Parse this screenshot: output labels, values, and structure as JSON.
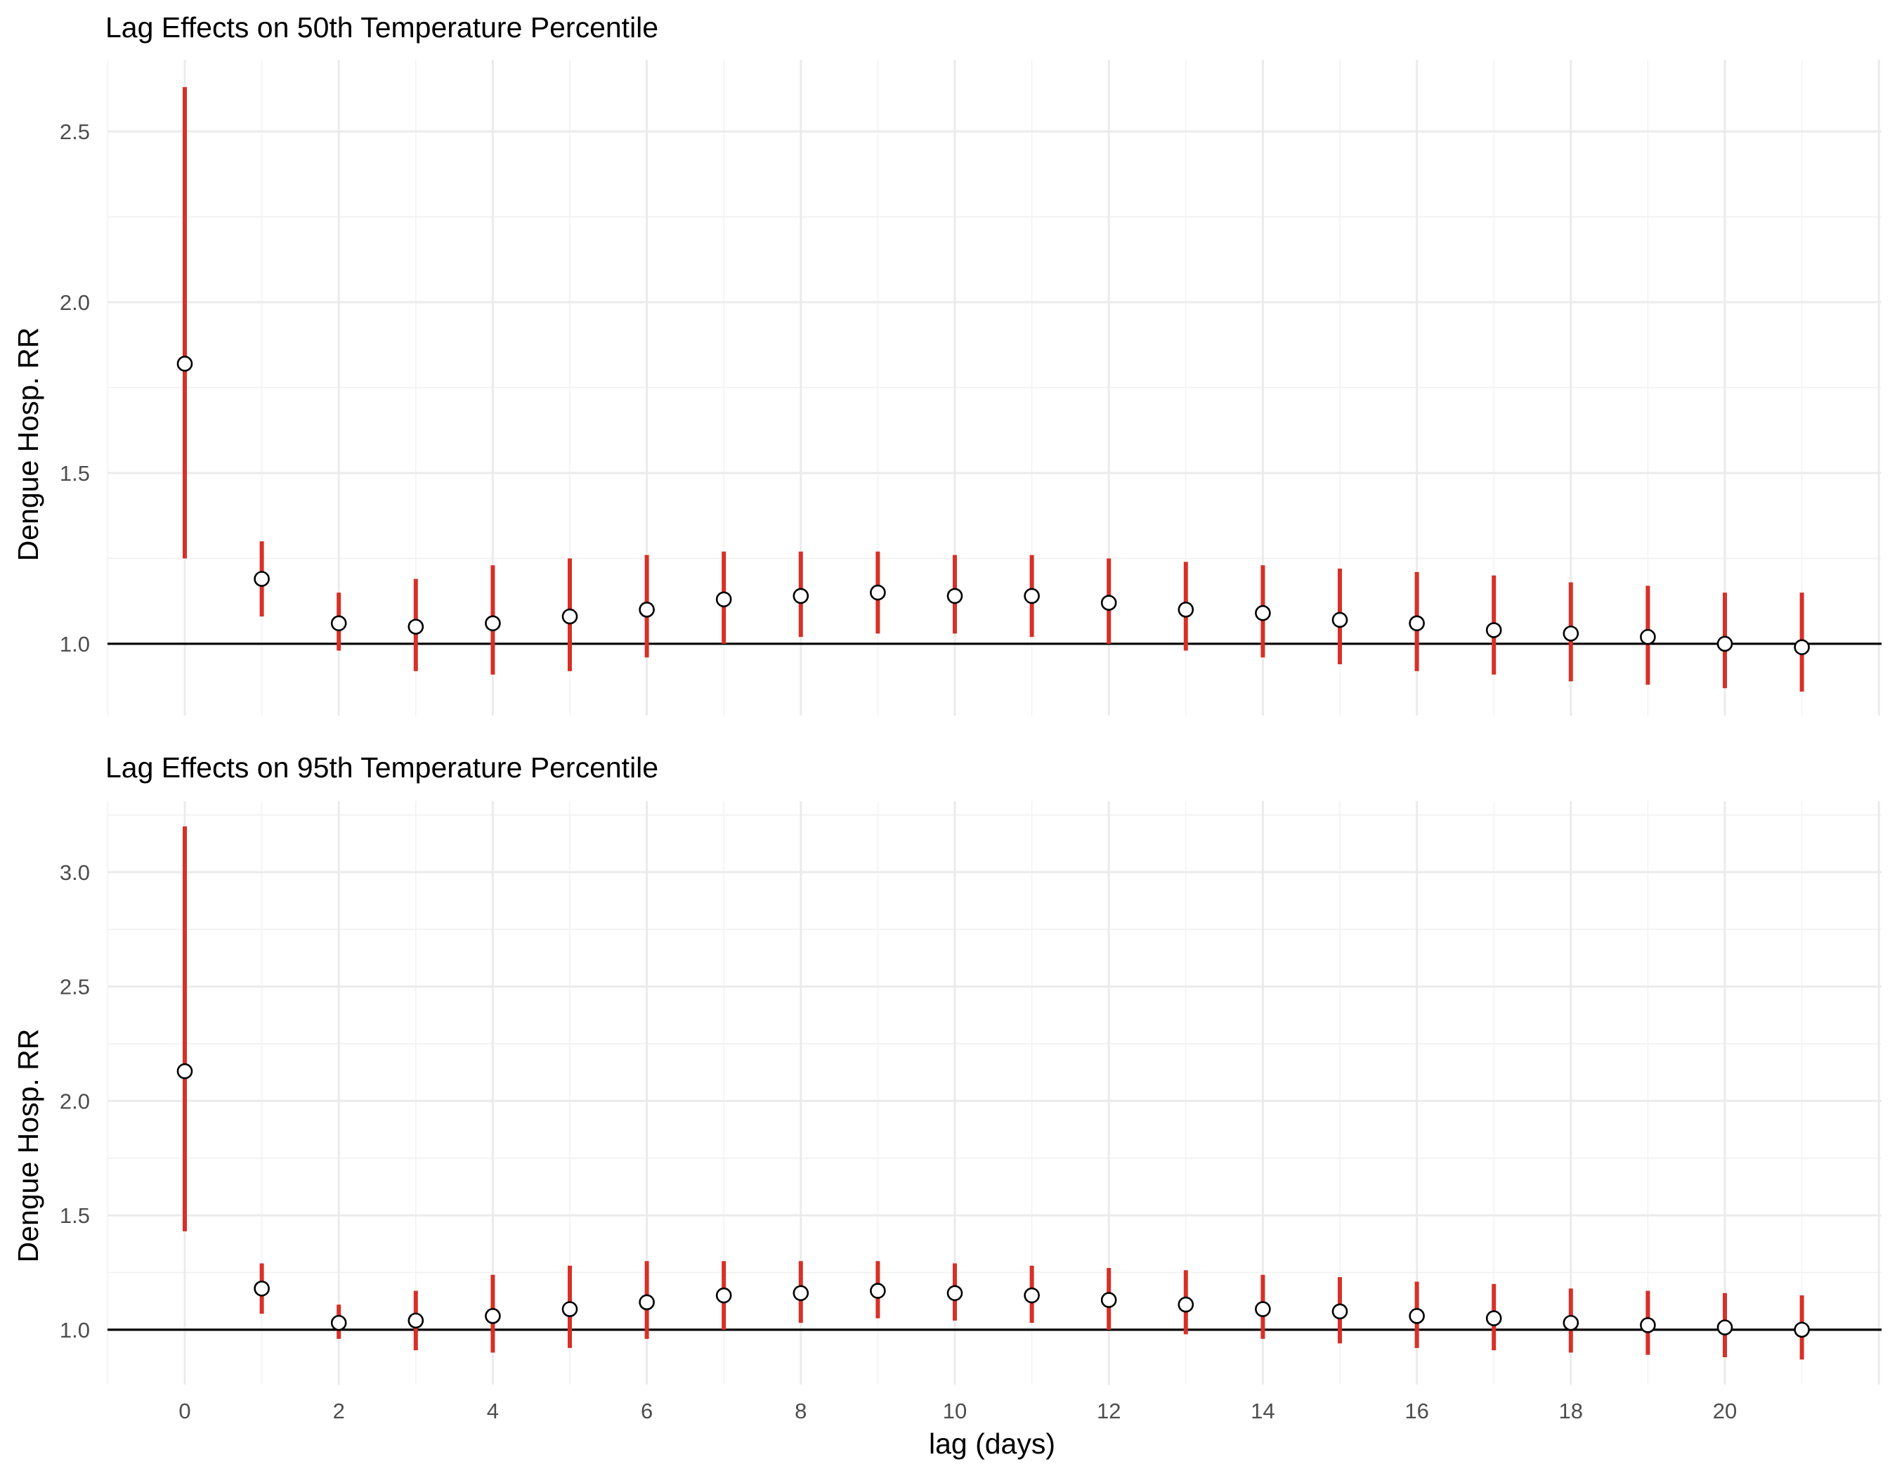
{
  "chart_data": [
    {
      "type": "errorbar",
      "title": "Lag Effects on 50th Temperature Percentile",
      "ylabel": "Dengue Hosp. RR",
      "xlabel": "",
      "reference_line": 1.0,
      "ylim": [
        0.79,
        2.71
      ],
      "yticks": [
        1.0,
        1.5,
        2.0,
        2.5
      ],
      "tick_labels": [
        "1.0",
        "1.5",
        "2.0",
        "2.5"
      ],
      "grid": true,
      "x": [
        0,
        1,
        2,
        3,
        4,
        5,
        6,
        7,
        8,
        9,
        10,
        11,
        12,
        13,
        14,
        15,
        16,
        17,
        18,
        19,
        20,
        21
      ],
      "estimate": [
        1.82,
        1.19,
        1.06,
        1.05,
        1.06,
        1.08,
        1.1,
        1.13,
        1.14,
        1.15,
        1.14,
        1.14,
        1.12,
        1.1,
        1.09,
        1.07,
        1.06,
        1.04,
        1.03,
        1.02,
        1.0,
        0.99
      ],
      "lower": [
        1.25,
        1.08,
        0.98,
        0.92,
        0.91,
        0.92,
        0.96,
        1.0,
        1.02,
        1.03,
        1.03,
        1.02,
        1.0,
        0.98,
        0.96,
        0.94,
        0.92,
        0.91,
        0.89,
        0.88,
        0.87,
        0.86
      ],
      "upper": [
        2.63,
        1.3,
        1.15,
        1.19,
        1.23,
        1.25,
        1.26,
        1.27,
        1.27,
        1.27,
        1.26,
        1.26,
        1.25,
        1.24,
        1.23,
        1.22,
        1.21,
        1.2,
        1.18,
        1.17,
        1.15,
        1.15
      ],
      "colors": {
        "interval": "#d73027",
        "point_fill": "#ffffff",
        "point_stroke": "#000000",
        "reference": "#000000"
      }
    },
    {
      "type": "errorbar",
      "title": "Lag Effects on 95th Temperature Percentile",
      "ylabel": "Dengue Hosp. RR",
      "xlabel": "lag (days)",
      "reference_line": 1.0,
      "ylim": [
        0.76,
        3.31
      ],
      "yticks": [
        1.0,
        1.5,
        2.0,
        2.5,
        3.0
      ],
      "tick_labels": [
        "1.0",
        "1.5",
        "2.0",
        "2.5",
        "3.0"
      ],
      "xticks": [
        0,
        2,
        4,
        6,
        8,
        10,
        12,
        14,
        16,
        18,
        20
      ],
      "xtick_labels": [
        "0",
        "2",
        "4",
        "6",
        "8",
        "10",
        "12",
        "14",
        "16",
        "18",
        "20"
      ],
      "grid": true,
      "x": [
        0,
        1,
        2,
        3,
        4,
        5,
        6,
        7,
        8,
        9,
        10,
        11,
        12,
        13,
        14,
        15,
        16,
        17,
        18,
        19,
        20,
        21
      ],
      "estimate": [
        2.13,
        1.18,
        1.03,
        1.04,
        1.06,
        1.09,
        1.12,
        1.15,
        1.16,
        1.17,
        1.16,
        1.15,
        1.13,
        1.11,
        1.09,
        1.08,
        1.06,
        1.05,
        1.03,
        1.02,
        1.01,
        1.0
      ],
      "lower": [
        1.43,
        1.07,
        0.96,
        0.91,
        0.9,
        0.92,
        0.96,
        1.0,
        1.03,
        1.05,
        1.04,
        1.03,
        1.0,
        0.98,
        0.96,
        0.94,
        0.92,
        0.91,
        0.9,
        0.89,
        0.88,
        0.87
      ],
      "upper": [
        3.2,
        1.29,
        1.11,
        1.17,
        1.24,
        1.28,
        1.3,
        1.3,
        1.3,
        1.3,
        1.29,
        1.28,
        1.27,
        1.26,
        1.24,
        1.23,
        1.21,
        1.2,
        1.18,
        1.17,
        1.16,
        1.15
      ],
      "colors": {
        "interval": "#d73027",
        "point_fill": "#ffffff",
        "point_stroke": "#000000",
        "reference": "#000000"
      }
    }
  ]
}
